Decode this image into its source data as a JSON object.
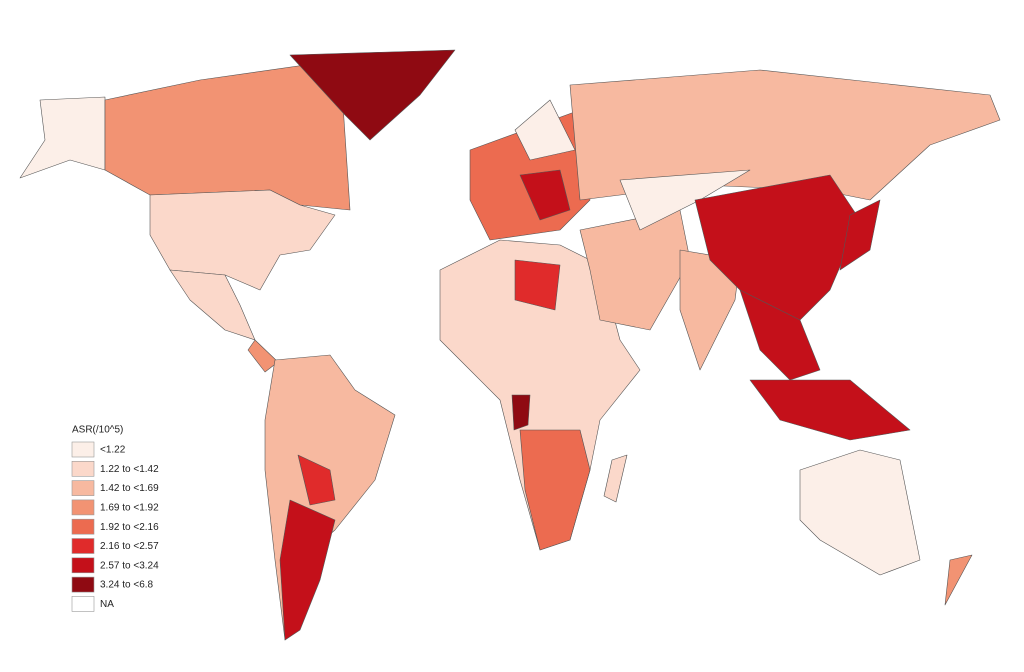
{
  "legend": {
    "title": "ASR(/10^5)",
    "items": [
      {
        "label": "<1.22",
        "color": "#fcefe8"
      },
      {
        "label": "1.22 to <1.42",
        "color": "#fbd8ca"
      },
      {
        "label": "1.42 to <1.69",
        "color": "#f7b9a0"
      },
      {
        "label": "1.69 to <1.92",
        "color": "#f29373"
      },
      {
        "label": "1.92 to <2.16",
        "color": "#ec6b50"
      },
      {
        "label": "2.16 to <2.57",
        "color": "#e02b2b"
      },
      {
        "label": "2.57 to <3.24",
        "color": "#c4101a"
      },
      {
        "label": "3.24 to <6.8",
        "color": "#8f0a12"
      },
      {
        "label": "NA",
        "color": "#ffffff"
      }
    ]
  }
}
